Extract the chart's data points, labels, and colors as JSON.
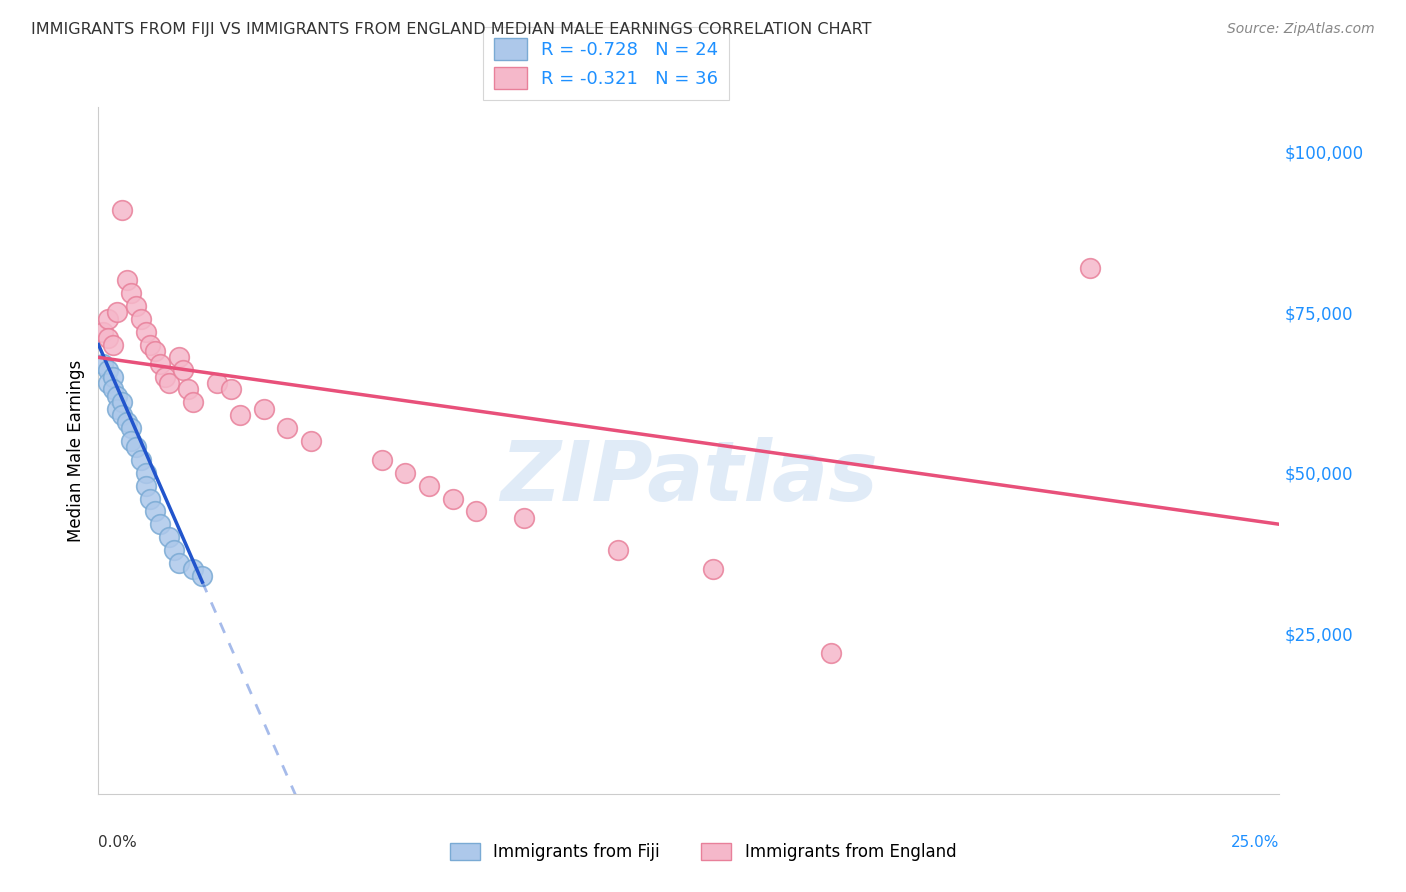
{
  "title": "IMMIGRANTS FROM FIJI VS IMMIGRANTS FROM ENGLAND MEDIAN MALE EARNINGS CORRELATION CHART",
  "source": "Source: ZipAtlas.com",
  "ylabel": "Median Male Earnings",
  "yticks": [
    0,
    25000,
    50000,
    75000,
    100000
  ],
  "ytick_labels": [
    "",
    "$25,000",
    "$50,000",
    "$75,000",
    "$100,000"
  ],
  "xmin": 0.0,
  "xmax": 0.25,
  "ymin": 0,
  "ymax": 107000,
  "fiji_color": "#adc8ea",
  "fiji_edge_color": "#7aaad4",
  "england_color": "#f5b8ca",
  "england_edge_color": "#e8809a",
  "fiji_line_color": "#2255cc",
  "england_line_color": "#e8507a",
  "fiji_R": -0.728,
  "fiji_N": 24,
  "england_R": -0.321,
  "england_N": 36,
  "watermark": "ZIPatlas",
  "fiji_scatter_x": [
    0.001,
    0.002,
    0.002,
    0.003,
    0.003,
    0.004,
    0.004,
    0.005,
    0.005,
    0.006,
    0.007,
    0.007,
    0.008,
    0.009,
    0.01,
    0.01,
    0.011,
    0.012,
    0.013,
    0.015,
    0.016,
    0.017,
    0.02,
    0.022
  ],
  "fiji_scatter_y": [
    67000,
    66000,
    64000,
    65000,
    63000,
    62000,
    60000,
    61000,
    59000,
    58000,
    57000,
    55000,
    54000,
    52000,
    50000,
    48000,
    46000,
    44000,
    42000,
    40000,
    38000,
    36000,
    35000,
    34000
  ],
  "england_scatter_x": [
    0.001,
    0.002,
    0.002,
    0.003,
    0.004,
    0.005,
    0.006,
    0.007,
    0.008,
    0.009,
    0.01,
    0.011,
    0.012,
    0.013,
    0.014,
    0.015,
    0.017,
    0.018,
    0.019,
    0.02,
    0.025,
    0.028,
    0.03,
    0.035,
    0.04,
    0.045,
    0.06,
    0.065,
    0.07,
    0.075,
    0.08,
    0.09,
    0.11,
    0.13,
    0.155,
    0.21
  ],
  "england_scatter_y": [
    72000,
    74000,
    71000,
    70000,
    75000,
    91000,
    80000,
    78000,
    76000,
    74000,
    72000,
    70000,
    69000,
    67000,
    65000,
    64000,
    68000,
    66000,
    63000,
    61000,
    64000,
    63000,
    59000,
    60000,
    57000,
    55000,
    52000,
    50000,
    48000,
    46000,
    44000,
    43000,
    38000,
    35000,
    22000,
    82000
  ],
  "fiji_line_x0": 0.0,
  "fiji_line_y0": 70000,
  "fiji_line_x1": 0.022,
  "fiji_line_y1": 33000,
  "fiji_line_dash_x0": 0.022,
  "fiji_line_dash_x1": 0.085,
  "england_line_x0": 0.0,
  "england_line_y0": 68000,
  "england_line_x1": 0.25,
  "england_line_y1": 42000
}
